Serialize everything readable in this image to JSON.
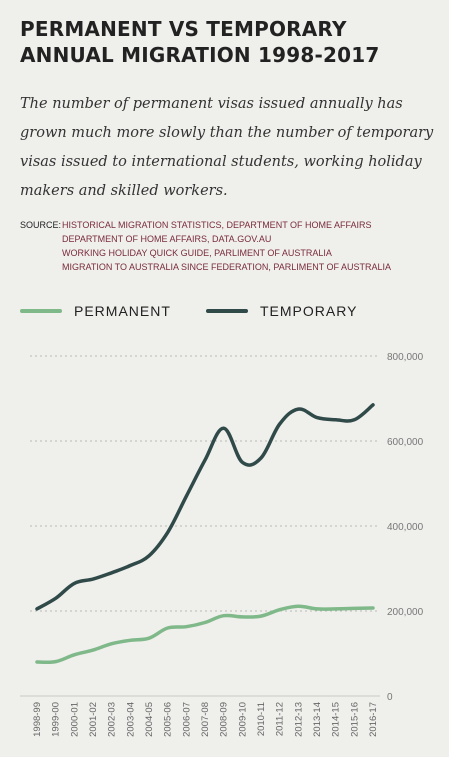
{
  "title": "PERMANENT VS TEMPORARY ANNUAL MIGRATION 1998-2017",
  "subtitle": "The number of permanent visas issued annually has grown much more slowly than the number of temporary visas issued to international students, working holiday makers and skilled workers.",
  "source": {
    "label": "SOURCE:",
    "items": [
      "HISTORICAL MIGRATION STATISTICS, DEPARTMENT OF HOME AFFAIRS",
      "DEPARTMENT OF HOME AFFAIRS, DATA.GOV.AU",
      "WORKING HOLIDAY QUICK GUIDE, PARLIMENT OF AUSTRALIA",
      "MIGRATION TO AUSTRALIA SINCE FEDERATION, PARLIMENT OF AUSTRALIA"
    ]
  },
  "chart_data": {
    "type": "line",
    "x": [
      "1998-99",
      "1999-00",
      "2000-01",
      "2001-02",
      "2002-03",
      "2003-04",
      "2004-05",
      "2005-06",
      "2006-07",
      "2007-08",
      "2008-09",
      "2009-10",
      "2010-11",
      "2011-12",
      "2012-13",
      "2013-14",
      "2014-15",
      "2015-16",
      "2016-17"
    ],
    "series": [
      {
        "name": "PERMANENT",
        "color": "#7fb889",
        "values": [
          80000,
          81000,
          97000,
          108000,
          123000,
          131000,
          136000,
          160000,
          163000,
          173000,
          189000,
          186000,
          188000,
          203000,
          211000,
          205000,
          205000,
          206000,
          207000
        ]
      },
      {
        "name": "TEMPORARY",
        "color": "#2f4a48",
        "values": [
          205000,
          230000,
          265000,
          275000,
          290000,
          307000,
          330000,
          385000,
          470000,
          555000,
          630000,
          550000,
          560000,
          640000,
          675000,
          655000,
          650000,
          650000,
          685000
        ]
      }
    ],
    "yticks": [
      "0",
      "200,000",
      "400,000",
      "600,000",
      "800,000"
    ],
    "ylim": [
      0,
      800000
    ],
    "grid": true,
    "legend": "top-left"
  }
}
